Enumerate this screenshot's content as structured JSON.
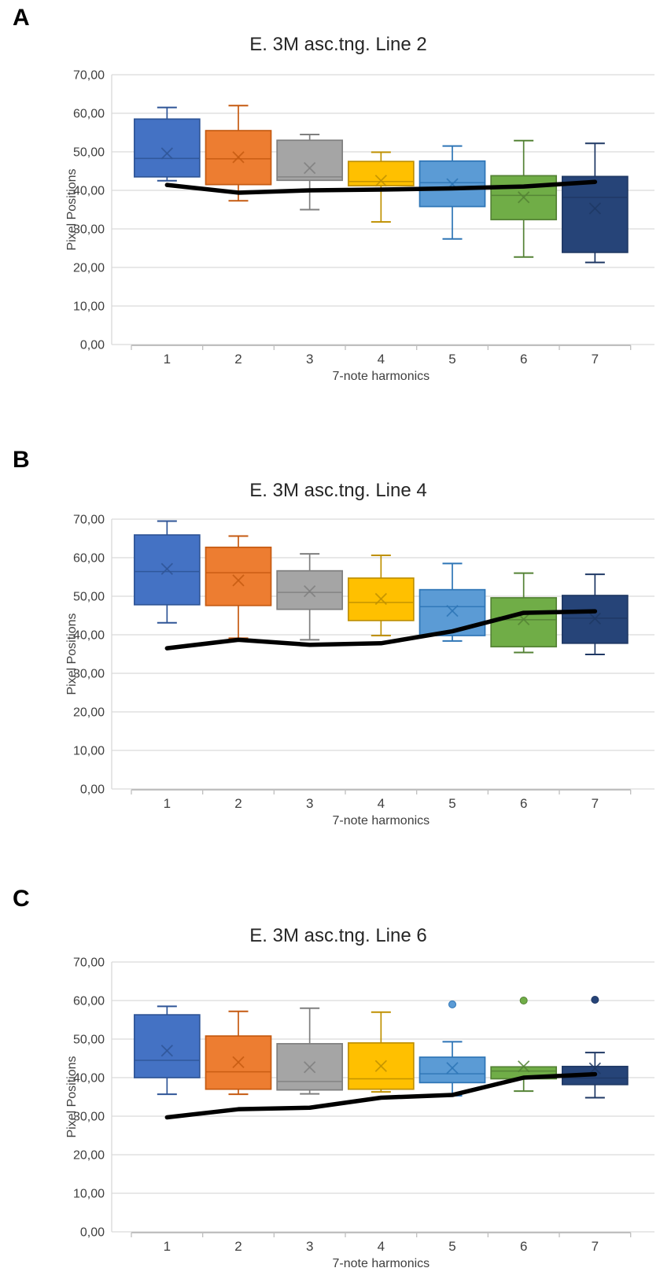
{
  "figure": {
    "background": "#ffffff",
    "gridline_color": "#d9d9d9",
    "axis_line_color": "#bfbfbf",
    "series_line_color": "#000000"
  },
  "chart_data": [
    {
      "type": "box",
      "panel_label": "A",
      "title": "E. 3M asc.tng. Line 2",
      "xlabel": "7-note harmonics",
      "ylabel": "Pixel Positions",
      "ylim": [
        0,
        70
      ],
      "ytick_labels": [
        "0,00",
        "10,00",
        "20,00",
        "30,00",
        "40,00",
        "50,00",
        "60,00",
        "70,00"
      ],
      "categories": [
        "1",
        "2",
        "3",
        "4",
        "5",
        "6",
        "7"
      ],
      "legend": "none",
      "boxes": [
        {
          "name": "blue",
          "fill": "#4472C4",
          "stroke": "#2F5597",
          "whisker_low": 42.5,
          "q1": 43.5,
          "median": 48.3,
          "q3": 58.5,
          "whisker_high": 61.5,
          "mean": 49.6,
          "outlier": null
        },
        {
          "name": "orange",
          "fill": "#ED7D31",
          "stroke": "#C55A11",
          "whisker_low": 37.3,
          "q1": 41.5,
          "median": 48.2,
          "q3": 55.5,
          "whisker_high": 62.0,
          "mean": 48.6,
          "outlier": null
        },
        {
          "name": "gray",
          "fill": "#A5A5A5",
          "stroke": "#7F7F7F",
          "whisker_low": 35.0,
          "q1": 42.6,
          "median": 43.5,
          "q3": 53.0,
          "whisker_high": 54.5,
          "mean": 45.8,
          "outlier": null
        },
        {
          "name": "yellow",
          "fill": "#FFC000",
          "stroke": "#BF9000",
          "whisker_low": 31.8,
          "q1": 41.2,
          "median": 42.3,
          "q3": 47.5,
          "whisker_high": 49.9,
          "mean": 42.5,
          "outlier": null
        },
        {
          "name": "light-blue",
          "fill": "#5B9BD5",
          "stroke": "#2E75B6",
          "whisker_low": 27.4,
          "q1": 35.8,
          "median": 42.0,
          "q3": 47.6,
          "whisker_high": 51.5,
          "mean": 41.6,
          "outlier": null
        },
        {
          "name": "green",
          "fill": "#70AD47",
          "stroke": "#548235",
          "whisker_low": 22.7,
          "q1": 32.4,
          "median": 38.7,
          "q3": 43.8,
          "whisker_high": 52.9,
          "mean": 38.2,
          "outlier": null
        },
        {
          "name": "navy",
          "fill": "#264478",
          "stroke": "#1F3864",
          "whisker_low": 21.3,
          "q1": 23.9,
          "median": 38.2,
          "q3": 43.6,
          "whisker_high": 52.2,
          "mean": 35.3,
          "outlier": null
        }
      ],
      "line_series": {
        "name": "reference-line",
        "color": "#000000",
        "values": [
          41.4,
          39.4,
          40.0,
          40.2,
          40.5,
          41.0,
          42.2
        ]
      }
    },
    {
      "type": "box",
      "panel_label": "B",
      "title": "E. 3M asc.tng. Line 4",
      "xlabel": "7-note harmonics",
      "ylabel": "Pixel Positions",
      "ylim": [
        0,
        70
      ],
      "ytick_labels": [
        "0,00",
        "10,00",
        "20,00",
        "30,00",
        "40,00",
        "50,00",
        "60,00",
        "70,00"
      ],
      "categories": [
        "1",
        "2",
        "3",
        "4",
        "5",
        "6",
        "7"
      ],
      "legend": "none",
      "boxes": [
        {
          "name": "blue",
          "fill": "#4472C4",
          "stroke": "#2F5597",
          "whisker_low": 43.1,
          "q1": 47.8,
          "median": 56.4,
          "q3": 65.9,
          "whisker_high": 69.5,
          "mean": 57.1,
          "outlier": null
        },
        {
          "name": "orange",
          "fill": "#ED7D31",
          "stroke": "#C55A11",
          "whisker_low": 39.1,
          "q1": 47.6,
          "median": 56.1,
          "q3": 62.7,
          "whisker_high": 65.6,
          "mean": 54.1,
          "outlier": null
        },
        {
          "name": "gray",
          "fill": "#A5A5A5",
          "stroke": "#7F7F7F",
          "whisker_low": 38.7,
          "q1": 46.6,
          "median": 51.0,
          "q3": 56.6,
          "whisker_high": 61.0,
          "mean": 51.3,
          "outlier": null
        },
        {
          "name": "yellow",
          "fill": "#FFC000",
          "stroke": "#BF9000",
          "whisker_low": 39.8,
          "q1": 43.7,
          "median": 48.4,
          "q3": 54.7,
          "whisker_high": 60.6,
          "mean": 49.3,
          "outlier": null
        },
        {
          "name": "light-blue",
          "fill": "#5B9BD5",
          "stroke": "#2E75B6",
          "whisker_low": 38.4,
          "q1": 39.8,
          "median": 47.3,
          "q3": 51.7,
          "whisker_high": 58.5,
          "mean": 46.2,
          "outlier": null
        },
        {
          "name": "green",
          "fill": "#70AD47",
          "stroke": "#548235",
          "whisker_low": 35.4,
          "q1": 36.9,
          "median": 43.9,
          "q3": 49.6,
          "whisker_high": 56.0,
          "mean": 44.0,
          "outlier": null
        },
        {
          "name": "navy",
          "fill": "#264478",
          "stroke": "#1F3864",
          "whisker_low": 34.9,
          "q1": 37.8,
          "median": 44.3,
          "q3": 50.2,
          "whisker_high": 55.7,
          "mean": 44.2,
          "outlier": null
        }
      ],
      "line_series": {
        "name": "reference-line",
        "color": "#000000",
        "values": [
          36.5,
          38.7,
          37.4,
          37.8,
          40.9,
          45.7,
          46.1
        ]
      }
    },
    {
      "type": "box",
      "panel_label": "C",
      "title": "E. 3M asc.tng. Line 6",
      "xlabel": "7-note harmonics",
      "ylabel": "Pixel Positions",
      "ylim": [
        0,
        70
      ],
      "ytick_labels": [
        "0,00",
        "10,00",
        "20,00",
        "30,00",
        "40,00",
        "50,00",
        "60,00",
        "70,00"
      ],
      "categories": [
        "1",
        "2",
        "3",
        "4",
        "5",
        "6",
        "7"
      ],
      "legend": "none",
      "boxes": [
        {
          "name": "blue",
          "fill": "#4472C4",
          "stroke": "#2F5597",
          "whisker_low": 35.7,
          "q1": 40.0,
          "median": 44.5,
          "q3": 56.3,
          "whisker_high": 58.5,
          "mean": 47.0,
          "outlier": null
        },
        {
          "name": "orange",
          "fill": "#ED7D31",
          "stroke": "#C55A11",
          "whisker_low": 35.7,
          "q1": 37.0,
          "median": 41.5,
          "q3": 50.8,
          "whisker_high": 57.2,
          "mean": 44.0,
          "outlier": null
        },
        {
          "name": "gray",
          "fill": "#A5A5A5",
          "stroke": "#7F7F7F",
          "whisker_low": 35.8,
          "q1": 36.8,
          "median": 39.0,
          "q3": 48.8,
          "whisker_high": 58.0,
          "mean": 42.7,
          "outlier": null
        },
        {
          "name": "yellow",
          "fill": "#FFC000",
          "stroke": "#BF9000",
          "whisker_low": 36.3,
          "q1": 37.0,
          "median": 39.7,
          "q3": 49.0,
          "whisker_high": 57.0,
          "mean": 43.0,
          "outlier": null
        },
        {
          "name": "light-blue",
          "fill": "#5B9BD5",
          "stroke": "#2E75B6",
          "whisker_low": 35.3,
          "q1": 38.7,
          "median": 41.0,
          "q3": 45.3,
          "whisker_high": 49.3,
          "mean": 42.5,
          "outlier": 59.0
        },
        {
          "name": "green",
          "fill": "#70AD47",
          "stroke": "#548235",
          "whisker_low": 36.5,
          "q1": 39.7,
          "median": 41.7,
          "q3": 42.8,
          "whisker_high": 42.8,
          "mean": 42.9,
          "outlier": 60.0
        },
        {
          "name": "navy",
          "fill": "#264478",
          "stroke": "#1F3864",
          "whisker_low": 34.8,
          "q1": 38.2,
          "median": 39.9,
          "q3": 42.9,
          "whisker_high": 46.5,
          "mean": 42.4,
          "outlier": 60.2
        }
      ],
      "line_series": {
        "name": "reference-line",
        "color": "#000000",
        "values": [
          29.7,
          31.8,
          32.2,
          34.8,
          35.5,
          40.0,
          40.9
        ]
      }
    }
  ]
}
